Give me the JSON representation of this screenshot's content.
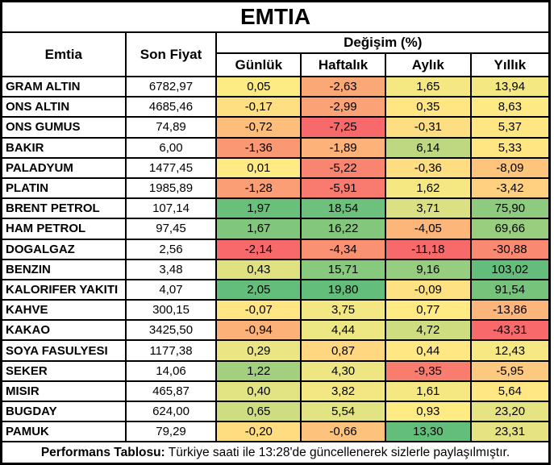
{
  "chart_data": {
    "type": "table",
    "title": "EMTIA",
    "header": {
      "emtia": "Emtia",
      "price": "Son Fiyat",
      "change_group": "Değişim (%)",
      "periods": [
        "Günlük",
        "Haftalık",
        "Aylık",
        "Yıllık"
      ]
    },
    "rows": [
      {
        "name": "GRAM ALTIN",
        "price": 6782.97,
        "changes": [
          0.05,
          -2.63,
          1.65,
          13.94
        ]
      },
      {
        "name": "ONS ALTIN",
        "price": 4685.46,
        "changes": [
          -0.17,
          -2.99,
          0.35,
          8.63
        ]
      },
      {
        "name": "ONS GUMUS",
        "price": 74.89,
        "changes": [
          -0.72,
          -7.25,
          -0.31,
          5.37
        ]
      },
      {
        "name": "BAKIR",
        "price": 6.0,
        "changes": [
          -1.36,
          -1.89,
          6.14,
          5.33
        ]
      },
      {
        "name": "PALADYUM",
        "price": 1477.45,
        "changes": [
          0.01,
          -5.22,
          -0.36,
          -8.09
        ]
      },
      {
        "name": "PLATIN",
        "price": 1985.89,
        "changes": [
          -1.28,
          -5.91,
          1.62,
          -3.42
        ]
      },
      {
        "name": "BRENT PETROL",
        "price": 107.14,
        "changes": [
          1.97,
          18.54,
          3.71,
          75.9
        ]
      },
      {
        "name": "HAM PETROL",
        "price": 97.45,
        "changes": [
          1.67,
          16.22,
          -4.05,
          69.66
        ]
      },
      {
        "name": "DOGALGAZ",
        "price": 2.56,
        "changes": [
          -2.14,
          -4.34,
          -11.18,
          -30.88
        ]
      },
      {
        "name": "BENZIN",
        "price": 3.48,
        "changes": [
          0.43,
          15.71,
          9.16,
          103.02
        ]
      },
      {
        "name": "KALORIFER YAKITI",
        "price": 4.07,
        "changes": [
          2.05,
          19.8,
          -0.09,
          91.54
        ]
      },
      {
        "name": "KAHVE",
        "price": 300.15,
        "changes": [
          -0.07,
          3.75,
          0.77,
          -13.86
        ]
      },
      {
        "name": "KAKAO",
        "price": 3425.5,
        "changes": [
          -0.94,
          4.44,
          4.72,
          -43.31
        ]
      },
      {
        "name": "SOYA FASULYESI",
        "price": 1177.38,
        "changes": [
          0.29,
          0.87,
          0.44,
          12.43
        ]
      },
      {
        "name": "SEKER",
        "price": 14.06,
        "changes": [
          1.22,
          4.3,
          -9.35,
          -5.95
        ]
      },
      {
        "name": "MISIR",
        "price": 465.87,
        "changes": [
          0.4,
          3.82,
          1.61,
          5.64
        ]
      },
      {
        "name": "BUGDAY",
        "price": 624.0,
        "changes": [
          0.65,
          5.54,
          0.93,
          23.2
        ]
      },
      {
        "name": "PAMUK",
        "price": 79.29,
        "changes": [
          -0.2,
          -0.66,
          13.3,
          23.31
        ]
      }
    ],
    "layout": {
      "decimal_separator": ",",
      "heatmap_scope": "per-column",
      "heatmap_midpoint": "median"
    }
  },
  "heatmap": {
    "low": "#F8696B",
    "mid": "#FFEB84",
    "high": "#63BE7B"
  },
  "footer": {
    "label": "Performans Tablosu:",
    "text": "Türkiye saati ile 13:28'de güncellenerek sizlerle paylaşılmıştır."
  }
}
